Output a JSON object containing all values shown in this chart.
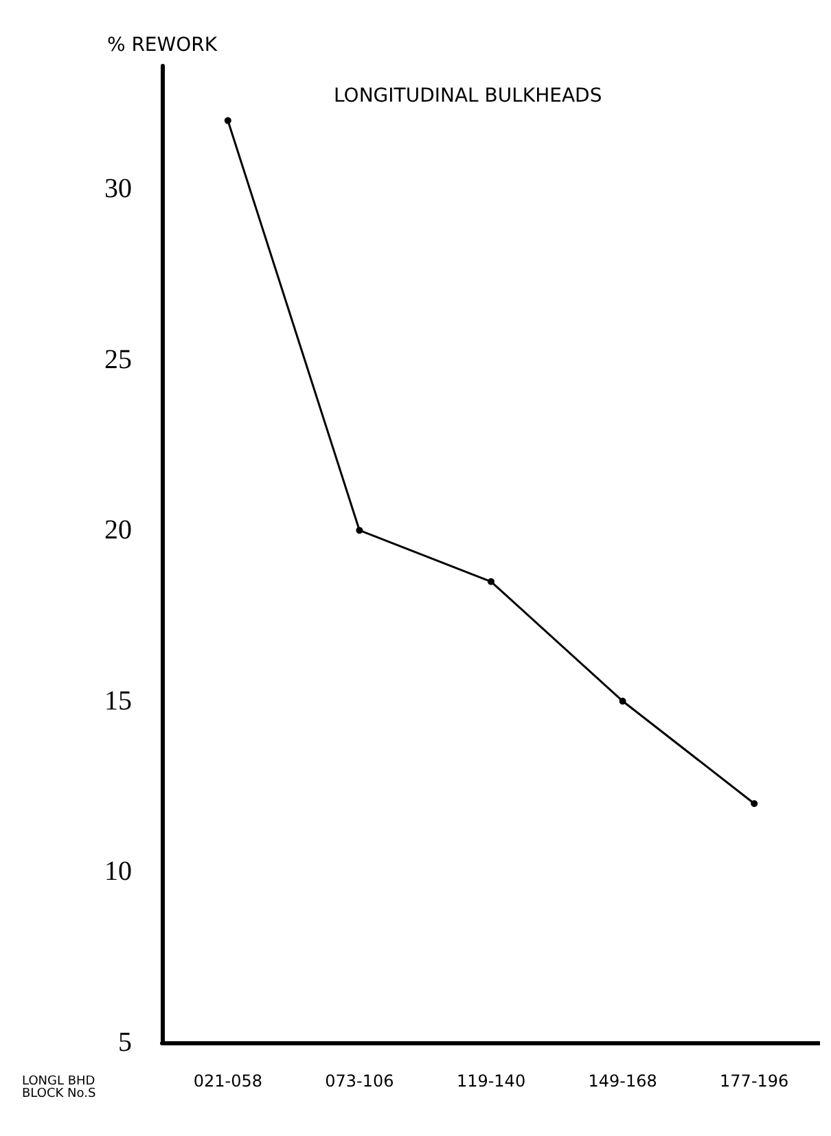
{
  "chart_data": {
    "type": "line",
    "title": "LONGITUDINAL BULKHEADS",
    "ylabel": "% REWORK",
    "xlabel": "LONGL BHD BLOCK No.S",
    "categories": [
      "021-058",
      "073-106",
      "119-140",
      "149-168",
      "177-196"
    ],
    "series": [
      {
        "color": "#000000",
        "values": [
          32,
          20,
          18.5,
          15,
          12
        ]
      }
    ],
    "ylim": [
      5,
      33.6
    ],
    "yticks": [
      5,
      10,
      15,
      20,
      25,
      30
    ],
    "grid": false,
    "marker": "circle",
    "line_style": "solid"
  }
}
